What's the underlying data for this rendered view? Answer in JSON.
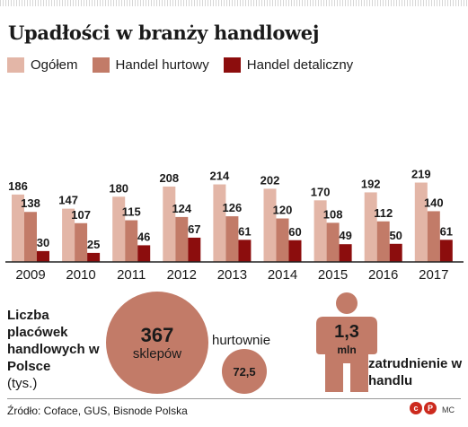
{
  "title": "Upadłości w branży handlowej",
  "legend": [
    {
      "name": "Ogółem",
      "color": "#e3b6a7"
    },
    {
      "name": "Handel hurtowy",
      "color": "#c27b68"
    },
    {
      "name": "Handel detaliczny",
      "color": "#8c0d0d"
    }
  ],
  "chart_data": {
    "type": "bar",
    "title": "Upadłości w branży handlowej",
    "categories": [
      "2009",
      "2010",
      "2011",
      "2012",
      "2013",
      "2014",
      "2015",
      "2016",
      "2017"
    ],
    "series": [
      {
        "name": "Ogółem",
        "values": [
          186,
          147,
          180,
          208,
          214,
          202,
          170,
          192,
          219
        ]
      },
      {
        "name": "Handel hurtowy",
        "values": [
          138,
          107,
          115,
          124,
          126,
          120,
          108,
          112,
          140
        ]
      },
      {
        "name": "Handel detaliczny",
        "values": [
          30,
          25,
          46,
          67,
          61,
          60,
          49,
          50,
          61
        ]
      }
    ],
    "ylim": [
      0,
      260
    ],
    "grid": false,
    "legend_position": "top-left"
  },
  "summary": {
    "label": "Liczba placówek handlowych w Polsce",
    "unit": "(tys.)",
    "stores_value": "367",
    "stores_label": "sklepów",
    "wholesale_label": "hurtownie",
    "wholesale_value": "72,5"
  },
  "employment": {
    "value": "1,3",
    "unit": "mln",
    "label": "zatrudnienie w handlu"
  },
  "footer": {
    "source": "Źródło: Coface, GUS, Bisnode Polska",
    "logo_letters": [
      "c",
      "P"
    ],
    "author": "MC"
  }
}
